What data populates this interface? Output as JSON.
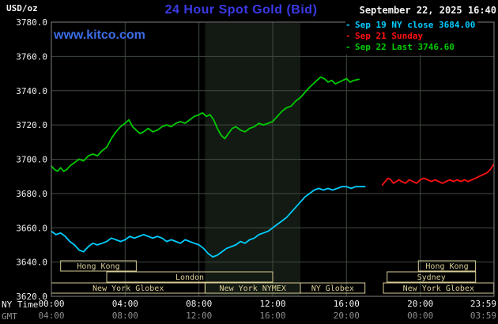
{
  "header": {
    "unit_label": "USD/oz",
    "title": "24 Hour Spot Gold (Bid)",
    "timestamp": "September 22, 2025 16:40",
    "watermark": "www.kitco.com"
  },
  "footer": {
    "ny_time_label": "NY Time",
    "gmt_label": "GMT"
  },
  "colors": {
    "background": "#000000",
    "title_blue": "#3a3ae6",
    "kitco_blue": "#3c6ce6",
    "text_white": "#f2f2f2",
    "text_gray": "#8f8f8f",
    "grid": "#3f4a3f",
    "plot_border": "#7f7f7f",
    "band": "#131a13",
    "session_beige": "#d8cc96"
  },
  "chart_data": {
    "type": "line",
    "title": "24 Hour Spot Gold (Bid)",
    "ylabel": "USD/oz",
    "ylim": [
      3620,
      3780
    ],
    "xlim_hours": [
      0,
      24
    ],
    "grid": true,
    "legend_position": "top-right",
    "nymex_band_hours": [
      8.33,
      13.5
    ],
    "y_ticks": [
      {
        "value": 3780,
        "label": "3780.0"
      },
      {
        "value": 3760,
        "label": "3760.0"
      },
      {
        "value": 3740,
        "label": "3740.0"
      },
      {
        "value": 3720,
        "label": "3720.0"
      },
      {
        "value": 3700,
        "label": "3700.0"
      },
      {
        "value": 3680,
        "label": "3680.0"
      },
      {
        "value": 3660,
        "label": "3660.0"
      },
      {
        "value": 3640,
        "label": "3640.0"
      },
      {
        "value": 3620,
        "label": "3620.0"
      }
    ],
    "x_ticks": [
      {
        "hour": 0,
        "ny": "00:00",
        "gmt": "04:00"
      },
      {
        "hour": 4,
        "ny": "04:00",
        "gmt": "08:00"
      },
      {
        "hour": 8,
        "ny": "08:00",
        "gmt": "12:00"
      },
      {
        "hour": 12,
        "ny": "12:00",
        "gmt": "16:00"
      },
      {
        "hour": 16,
        "ny": "16:00",
        "gmt": "20:00"
      },
      {
        "hour": 20,
        "ny": "20:00",
        "gmt": "00:00"
      },
      {
        "hour": 23.983,
        "ny": "23:59",
        "gmt": "03:59"
      }
    ],
    "legend": [
      {
        "swatch": "-",
        "label": "Sep 19 NY close 3684.00",
        "color": "#00ccff"
      },
      {
        "swatch": "-",
        "label": "Sep 21 Sunday",
        "color": "#ff1111"
      },
      {
        "swatch": "-",
        "label": "Sep 22 Last 3746.60",
        "color": "#00cc00"
      }
    ],
    "series": [
      {
        "id": "sep19-ny-close",
        "name": "Sep 19 NY close",
        "color": "#00ccff",
        "points": [
          [
            0,
            3658
          ],
          [
            0.25,
            3656
          ],
          [
            0.5,
            3657
          ],
          [
            0.75,
            3655
          ],
          [
            1,
            3652
          ],
          [
            1.25,
            3650
          ],
          [
            1.5,
            3647
          ],
          [
            1.75,
            3646
          ],
          [
            2,
            3649
          ],
          [
            2.25,
            3651
          ],
          [
            2.5,
            3650
          ],
          [
            2.75,
            3651
          ],
          [
            3,
            3652
          ],
          [
            3.25,
            3654
          ],
          [
            3.5,
            3653
          ],
          [
            3.75,
            3652
          ],
          [
            4,
            3653
          ],
          [
            4.25,
            3655
          ],
          [
            4.5,
            3654
          ],
          [
            4.75,
            3655
          ],
          [
            5,
            3656
          ],
          [
            5.25,
            3655
          ],
          [
            5.5,
            3654
          ],
          [
            5.75,
            3655
          ],
          [
            6,
            3654
          ],
          [
            6.25,
            3652
          ],
          [
            6.5,
            3653
          ],
          [
            6.75,
            3652
          ],
          [
            7,
            3651
          ],
          [
            7.25,
            3653
          ],
          [
            7.5,
            3652
          ],
          [
            7.75,
            3651
          ],
          [
            8,
            3650
          ],
          [
            8.25,
            3648
          ],
          [
            8.5,
            3645
          ],
          [
            8.75,
            3643
          ],
          [
            9,
            3644
          ],
          [
            9.25,
            3646
          ],
          [
            9.5,
            3648
          ],
          [
            9.75,
            3649
          ],
          [
            10,
            3650
          ],
          [
            10.25,
            3652
          ],
          [
            10.5,
            3651
          ],
          [
            10.75,
            3653
          ],
          [
            11,
            3654
          ],
          [
            11.25,
            3656
          ],
          [
            11.5,
            3657
          ],
          [
            11.75,
            3658
          ],
          [
            12,
            3660
          ],
          [
            12.25,
            3662
          ],
          [
            12.5,
            3664
          ],
          [
            12.75,
            3666
          ],
          [
            13,
            3669
          ],
          [
            13.25,
            3672
          ],
          [
            13.5,
            3675
          ],
          [
            13.75,
            3678
          ],
          [
            14,
            3680
          ],
          [
            14.25,
            3682
          ],
          [
            14.5,
            3683
          ],
          [
            14.75,
            3682
          ],
          [
            15,
            3683
          ],
          [
            15.25,
            3682
          ],
          [
            15.5,
            3683
          ],
          [
            15.75,
            3684
          ],
          [
            16,
            3684
          ],
          [
            16.25,
            3683
          ],
          [
            16.5,
            3684
          ],
          [
            16.75,
            3684
          ],
          [
            17,
            3684
          ]
        ]
      },
      {
        "id": "sep21-sunday",
        "name": "Sep 21 Sunday",
        "color": "#ff1111",
        "points": [
          [
            17.95,
            3685
          ],
          [
            18.1,
            3687
          ],
          [
            18.25,
            3689
          ],
          [
            18.4,
            3688
          ],
          [
            18.55,
            3686
          ],
          [
            18.7,
            3687
          ],
          [
            18.85,
            3688
          ],
          [
            19,
            3687
          ],
          [
            19.2,
            3686
          ],
          [
            19.4,
            3688
          ],
          [
            19.6,
            3687
          ],
          [
            19.8,
            3686
          ],
          [
            20,
            3688
          ],
          [
            20.2,
            3689
          ],
          [
            20.4,
            3688
          ],
          [
            20.6,
            3687
          ],
          [
            20.8,
            3688
          ],
          [
            21,
            3687
          ],
          [
            21.2,
            3686
          ],
          [
            21.4,
            3687
          ],
          [
            21.6,
            3688
          ],
          [
            21.8,
            3687
          ],
          [
            22,
            3688
          ],
          [
            22.2,
            3687
          ],
          [
            22.4,
            3688
          ],
          [
            22.6,
            3687
          ],
          [
            22.8,
            3688
          ],
          [
            23,
            3689
          ],
          [
            23.2,
            3690
          ],
          [
            23.4,
            3691
          ],
          [
            23.6,
            3692
          ],
          [
            23.8,
            3694
          ],
          [
            23.98,
            3697
          ]
        ]
      },
      {
        "id": "sep22-last",
        "name": "Sep 22 Last",
        "color": "#00cc00",
        "points": [
          [
            0,
            3696
          ],
          [
            0.17,
            3694
          ],
          [
            0.33,
            3693
          ],
          [
            0.5,
            3695
          ],
          [
            0.67,
            3693
          ],
          [
            0.83,
            3694
          ],
          [
            1,
            3696
          ],
          [
            1.25,
            3698
          ],
          [
            1.5,
            3700
          ],
          [
            1.75,
            3699
          ],
          [
            2,
            3702
          ],
          [
            2.25,
            3703
          ],
          [
            2.5,
            3702
          ],
          [
            2.75,
            3705
          ],
          [
            3,
            3707
          ],
          [
            3.25,
            3712
          ],
          [
            3.5,
            3716
          ],
          [
            3.75,
            3719
          ],
          [
            4,
            3721
          ],
          [
            4.2,
            3723
          ],
          [
            4.4,
            3719
          ],
          [
            4.6,
            3717
          ],
          [
            4.8,
            3715
          ],
          [
            5,
            3716
          ],
          [
            5.25,
            3718
          ],
          [
            5.5,
            3716
          ],
          [
            5.75,
            3717
          ],
          [
            6,
            3719
          ],
          [
            6.25,
            3720
          ],
          [
            6.5,
            3719
          ],
          [
            6.75,
            3721
          ],
          [
            7,
            3722
          ],
          [
            7.25,
            3721
          ],
          [
            7.5,
            3723
          ],
          [
            7.75,
            3725
          ],
          [
            8,
            3726
          ],
          [
            8.2,
            3727
          ],
          [
            8.4,
            3725
          ],
          [
            8.6,
            3726
          ],
          [
            8.8,
            3723
          ],
          [
            9,
            3718
          ],
          [
            9.2,
            3714
          ],
          [
            9.4,
            3712
          ],
          [
            9.6,
            3715
          ],
          [
            9.8,
            3718
          ],
          [
            10,
            3719
          ],
          [
            10.25,
            3717
          ],
          [
            10.5,
            3716
          ],
          [
            10.75,
            3718
          ],
          [
            11,
            3719
          ],
          [
            11.25,
            3721
          ],
          [
            11.5,
            3720
          ],
          [
            11.75,
            3721
          ],
          [
            12,
            3722
          ],
          [
            12.25,
            3725
          ],
          [
            12.5,
            3728
          ],
          [
            12.75,
            3730
          ],
          [
            13,
            3731
          ],
          [
            13.25,
            3734
          ],
          [
            13.5,
            3736
          ],
          [
            13.75,
            3739
          ],
          [
            14,
            3742
          ],
          [
            14.2,
            3744
          ],
          [
            14.4,
            3746
          ],
          [
            14.6,
            3748
          ],
          [
            14.8,
            3747
          ],
          [
            15,
            3745
          ],
          [
            15.2,
            3746
          ],
          [
            15.4,
            3744
          ],
          [
            15.6,
            3745
          ],
          [
            15.8,
            3746
          ],
          [
            16,
            3747
          ],
          [
            16.2,
            3745
          ],
          [
            16.4,
            3746
          ],
          [
            16.67,
            3746.6
          ]
        ]
      }
    ],
    "sessions": [
      {
        "id": "hong-kong-am",
        "label": "Hong Kong",
        "row": 0,
        "start": 0.5,
        "end": 4.6
      },
      {
        "id": "hong-kong-pm",
        "label": "Hong Kong",
        "row": 0,
        "start": 19.9,
        "end": 23.0
      },
      {
        "id": "london",
        "label": "London",
        "row": 1,
        "start": 3.0,
        "end": 12.0
      },
      {
        "id": "sydney",
        "label": "Sydney",
        "row": 1,
        "start": 18.2,
        "end": 23.0
      },
      {
        "id": "ny-globex-am",
        "label": "New York Globex",
        "row": 2,
        "start": 0.0,
        "end": 8.33
      },
      {
        "id": "ny-nymex",
        "label": "New York NYMEX",
        "row": 2,
        "start": 8.33,
        "end": 13.5
      },
      {
        "id": "ny-globex-midday",
        "label": "NY Globex",
        "row": 2,
        "start": 13.5,
        "end": 17.0
      },
      {
        "id": "ny-globex-pm",
        "label": "New York Globex",
        "row": 2,
        "start": 18.0,
        "end": 23.983
      }
    ]
  }
}
